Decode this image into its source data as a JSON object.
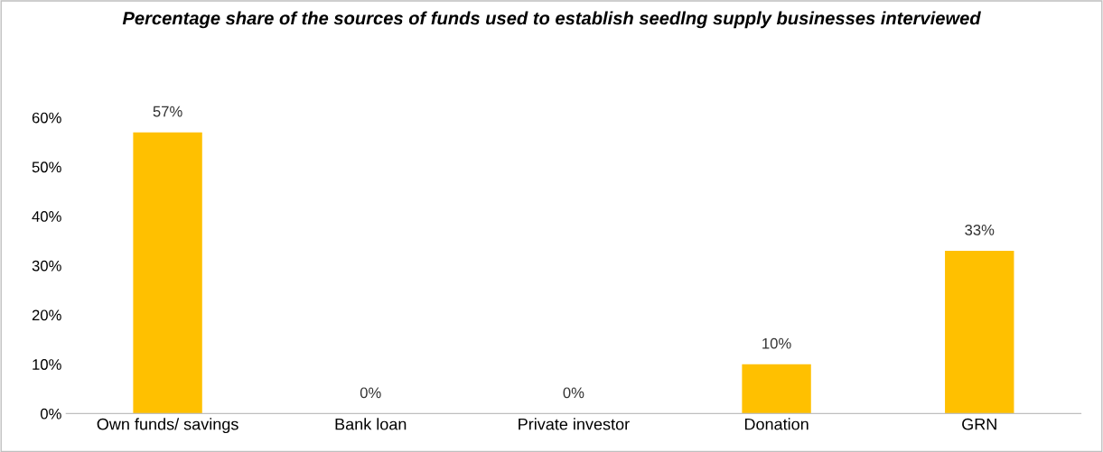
{
  "chart_data": {
    "type": "bar",
    "title": "Percentage share of the sources of funds used to establish seedlng supply businesses interviewed",
    "categories": [
      "Own funds/ savings",
      "Bank loan",
      "Private investor",
      "Donation",
      "GRN"
    ],
    "values": [
      57,
      0,
      0,
      10,
      33
    ],
    "value_labels": [
      "57%",
      "0%",
      "0%",
      "10%",
      "33%"
    ],
    "color": "#ffc000",
    "ylim": [
      0,
      60
    ],
    "yticks": [
      {
        "value": 0,
        "label": "0%"
      },
      {
        "value": 10,
        "label": "10%"
      },
      {
        "value": 20,
        "label": "20%"
      },
      {
        "value": 30,
        "label": "30%"
      },
      {
        "value": 40,
        "label": "40%"
      },
      {
        "value": 50,
        "label": "50%"
      },
      {
        "value": 60,
        "label": "60%"
      }
    ],
    "grid": false,
    "legend": false
  }
}
